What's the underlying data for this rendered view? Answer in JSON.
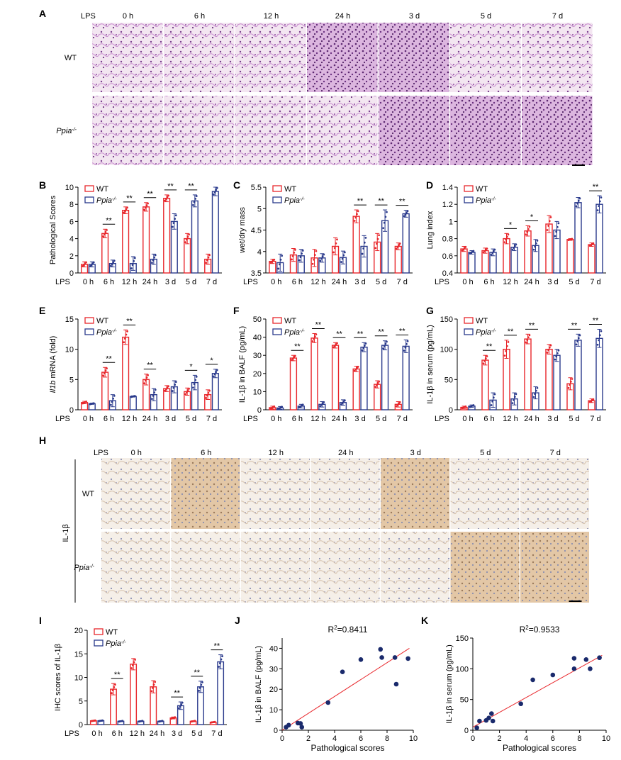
{
  "colors": {
    "wt": "#e8262b",
    "ko": "#2a3a8c",
    "fit": "#e8262b",
    "dot": "#1a2a6c"
  },
  "panel_letters": {
    "A": "A",
    "B": "B",
    "C": "C",
    "D": "D",
    "E": "E",
    "F": "F",
    "G": "G",
    "H": "H",
    "I": "I",
    "J": "J",
    "K": "K"
  },
  "lps_label": "LPS",
  "legend": {
    "wt": "WT",
    "ko": "Ppia",
    "ko_sup": "-/-"
  },
  "timepoints": [
    "0 h",
    "6 h",
    "12 h",
    "24 h",
    "3 d",
    "5 d",
    "7 d"
  ],
  "hist_A": {
    "lps": "LPS",
    "cols": [
      "0 h",
      "6 h",
      "12 h",
      "24 h",
      "3 d",
      "5 d",
      "7 d"
    ],
    "rows": [
      {
        "label": "WT",
        "sup": ""
      },
      {
        "label": "Ppia",
        "sup": "-/-"
      }
    ],
    "image_desc": "H&E stained lung tissue sections"
  },
  "hist_H": {
    "lps": "LPS",
    "cols": [
      "0 h",
      "6 h",
      "12 h",
      "24 h",
      "3 d",
      "5 d",
      "7 d"
    ],
    "rows": [
      {
        "label": "WT",
        "sup": ""
      },
      {
        "label": "Ppia",
        "sup": "-/-"
      }
    ],
    "side_label": "IL-1β",
    "image_desc": "IL-1β immunohistochemistry lung sections"
  },
  "chart_data": [
    {
      "id": "B",
      "type": "bar",
      "ylabel": "Pathological Scores",
      "ylim": [
        0,
        10
      ],
      "yticks": [
        0,
        2,
        4,
        6,
        8,
        10
      ],
      "categories": [
        "0 h",
        "6 h",
        "12 h",
        "24 h",
        "3 d",
        "5 d",
        "7 d"
      ],
      "series": [
        {
          "name": "WT",
          "values": [
            1.0,
            4.6,
            7.3,
            7.7,
            8.7,
            4.0,
            1.6
          ],
          "err": [
            0.3,
            0.5,
            0.4,
            0.5,
            0.4,
            0.6,
            0.6
          ]
        },
        {
          "name": "Ppia-/-",
          "values": [
            1.0,
            1.1,
            1.1,
            1.6,
            6.0,
            8.4,
            9.5
          ],
          "err": [
            0.3,
            0.4,
            0.8,
            0.6,
            0.9,
            0.7,
            0.5
          ]
        }
      ],
      "sig": [
        "",
        "**",
        "**",
        "**",
        "**",
        "**",
        ""
      ]
    },
    {
      "id": "C",
      "type": "bar",
      "ylabel": "wet/dry mass",
      "ylim": [
        3.5,
        5.5
      ],
      "yticks": [
        3.5,
        4.0,
        4.5,
        5.0,
        5.5
      ],
      "categories": [
        "0 h",
        "6 h",
        "12 h",
        "24 h",
        "3 d",
        "5 d",
        "7 d"
      ],
      "series": [
        {
          "name": "WT",
          "values": [
            3.77,
            3.92,
            3.85,
            4.12,
            4.82,
            4.22,
            4.12
          ],
          "err": [
            0.05,
            0.15,
            0.2,
            0.2,
            0.15,
            0.2,
            0.08
          ]
        },
        {
          "name": "Ppia-/-",
          "values": [
            3.74,
            3.9,
            3.85,
            3.86,
            4.12,
            4.72,
            4.88
          ],
          "err": [
            0.2,
            0.15,
            0.1,
            0.15,
            0.25,
            0.25,
            0.08
          ]
        }
      ],
      "sig": [
        "",
        "",
        "",
        "",
        "**",
        "**",
        "**"
      ]
    },
    {
      "id": "D",
      "type": "bar",
      "ylabel": "Lung index",
      "ylim": [
        0.4,
        1.4
      ],
      "yticks": [
        0.4,
        0.6,
        0.8,
        1.0,
        1.2,
        1.4
      ],
      "categories": [
        "0 h",
        "6 h",
        "12 h",
        "24 h",
        "3 d",
        "5 d",
        "7 d"
      ],
      "series": [
        {
          "name": "WT",
          "values": [
            0.68,
            0.66,
            0.8,
            0.89,
            0.97,
            0.79,
            0.73
          ],
          "err": [
            0.03,
            0.03,
            0.06,
            0.06,
            0.1,
            0.01,
            0.02
          ]
        },
        {
          "name": "Ppia-/-",
          "values": [
            0.64,
            0.64,
            0.7,
            0.72,
            0.9,
            1.22,
            1.2
          ],
          "err": [
            0.02,
            0.04,
            0.04,
            0.07,
            0.1,
            0.06,
            0.1
          ]
        }
      ],
      "sig": [
        "",
        "",
        "*",
        "*",
        "",
        "",
        "**"
      ]
    },
    {
      "id": "E",
      "type": "bar",
      "ylabel": "Il1b mRNA (fold)",
      "ylabel_italic": "Il1b",
      "ylabel_rest": " mRNA (fold)",
      "ylim": [
        0,
        15
      ],
      "yticks": [
        0,
        5,
        10,
        15
      ],
      "categories": [
        "0 h",
        "6 h",
        "12 h",
        "24 h",
        "3 d",
        "5 d",
        "7 d"
      ],
      "series": [
        {
          "name": "WT",
          "values": [
            1.2,
            6.2,
            12.0,
            5.0,
            3.5,
            3.0,
            2.5
          ],
          "err": [
            0.2,
            0.8,
            1.2,
            0.9,
            0.5,
            0.6,
            0.8
          ]
        },
        {
          "name": "Ppia-/-",
          "values": [
            1.0,
            1.5,
            2.2,
            2.5,
            3.8,
            4.5,
            6.0
          ],
          "err": [
            0.1,
            1.0,
            0.1,
            1.0,
            1.0,
            1.2,
            0.7
          ]
        }
      ],
      "sig": [
        "",
        "**",
        "**",
        "**",
        "",
        "*",
        "*"
      ]
    },
    {
      "id": "F",
      "type": "bar",
      "ylabel": "IL-1β in BALF (pg/mL)",
      "ylim": [
        0,
        50
      ],
      "yticks": [
        0,
        10,
        20,
        30,
        40,
        50
      ],
      "categories": [
        "0 h",
        "6 h",
        "12 h",
        "24 h",
        "3 d",
        "5 d",
        "7 d"
      ],
      "series": [
        {
          "name": "WT",
          "values": [
            1.2,
            28.5,
            39.5,
            35.5,
            22.5,
            14.0,
            3.0
          ],
          "err": [
            0.8,
            1.5,
            2.5,
            1.5,
            1.5,
            2.0,
            1.5
          ]
        },
        {
          "name": "Ppia-/-",
          "values": [
            1.0,
            2.0,
            3.0,
            4.0,
            34.5,
            35.5,
            35.0
          ],
          "err": [
            0.8,
            1.0,
            1.5,
            1.5,
            2.5,
            2.5,
            3.5
          ]
        }
      ],
      "sig": [
        "",
        "**",
        "**",
        "**",
        "**",
        "**",
        "**"
      ]
    },
    {
      "id": "G",
      "type": "bar",
      "ylabel": "IL-1β in serum (pg/mL)",
      "ylim": [
        0,
        150
      ],
      "yticks": [
        0,
        50,
        100,
        150
      ],
      "categories": [
        "0 h",
        "6 h",
        "12 h",
        "24 h",
        "3 d",
        "5 d",
        "7 d"
      ],
      "series": [
        {
          "name": "WT",
          "values": [
            4,
            82,
            100,
            117,
            100,
            43,
            15
          ],
          "err": [
            2,
            8,
            15,
            8,
            8,
            10,
            3
          ]
        },
        {
          "name": "Ppia-/-",
          "values": [
            6,
            16,
            18,
            28,
            90,
            115,
            118
          ],
          "err": [
            2,
            12,
            10,
            10,
            10,
            10,
            15
          ]
        }
      ],
      "sig": [
        "",
        "**",
        "**",
        "**",
        "",
        "**",
        "**"
      ]
    },
    {
      "id": "I",
      "type": "bar",
      "ylabel": "IHC scores of IL-1β",
      "ylim": [
        0,
        20
      ],
      "yticks": [
        0,
        5,
        10,
        15,
        20
      ],
      "categories": [
        "0 h",
        "6 h",
        "12 h",
        "24 h",
        "3 d",
        "5 d",
        "7 d"
      ],
      "series": [
        {
          "name": "WT",
          "values": [
            0.8,
            7.5,
            12.8,
            8.0,
            1.4,
            0.7,
            0.5
          ],
          "err": [
            0.1,
            1.2,
            1.2,
            1.3,
            0.2,
            0.1,
            0.1
          ]
        },
        {
          "name": "Ppia-/-",
          "values": [
            0.8,
            0.7,
            0.7,
            0.7,
            4.0,
            8.0,
            13.3
          ],
          "err": [
            0.1,
            0.1,
            0.1,
            0.1,
            0.8,
            1.2,
            1.5
          ]
        }
      ],
      "sig": [
        "",
        "**",
        "",
        "",
        "**",
        "**",
        "**"
      ]
    },
    {
      "id": "J",
      "type": "scatter",
      "annotation": "R2=0.8411",
      "r2": "=0.8411",
      "xlabel": "Pathological scores",
      "ylabel": "IL-1β in BALF (pg/mL)",
      "xlim": [
        0,
        10
      ],
      "ylim": [
        0,
        45
      ],
      "xticks": [
        0,
        2,
        4,
        6,
        8,
        10
      ],
      "yticks": [
        0,
        10,
        20,
        30,
        40
      ],
      "points": [
        [
          0.3,
          1.5
        ],
        [
          0.5,
          2.5
        ],
        [
          1.2,
          3.5
        ],
        [
          1.4,
          3.3
        ],
        [
          1.5,
          1.5
        ],
        [
          3.5,
          13.5
        ],
        [
          4.6,
          28.5
        ],
        [
          6.0,
          34.5
        ],
        [
          7.5,
          39.5
        ],
        [
          7.6,
          35.5
        ],
        [
          8.7,
          22.5
        ],
        [
          9.6,
          35.0
        ],
        [
          8.6,
          35.5
        ]
      ],
      "fit": [
        [
          0,
          0.0
        ],
        [
          9.7,
          40.0
        ]
      ]
    },
    {
      "id": "K",
      "type": "scatter",
      "annotation": "R2=0.9533",
      "r2": "=0.9533",
      "xlabel": "Pathological scores",
      "ylabel": "IL-1β in serum (pg/mL)",
      "xlim": [
        0,
        10
      ],
      "ylim": [
        0,
        150
      ],
      "xticks": [
        0,
        2,
        4,
        6,
        8,
        10
      ],
      "yticks": [
        0,
        50,
        100,
        150
      ],
      "points": [
        [
          0.3,
          4
        ],
        [
          0.5,
          15
        ],
        [
          1.0,
          16
        ],
        [
          1.2,
          20
        ],
        [
          1.4,
          27
        ],
        [
          1.5,
          15
        ],
        [
          3.6,
          43
        ],
        [
          4.5,
          82
        ],
        [
          6.0,
          90
        ],
        [
          7.6,
          100
        ],
        [
          7.6,
          117
        ],
        [
          8.5,
          115
        ],
        [
          8.8,
          100
        ],
        [
          9.5,
          118
        ]
      ],
      "fit": [
        [
          0,
          5
        ],
        [
          9.7,
          122
        ]
      ]
    }
  ]
}
